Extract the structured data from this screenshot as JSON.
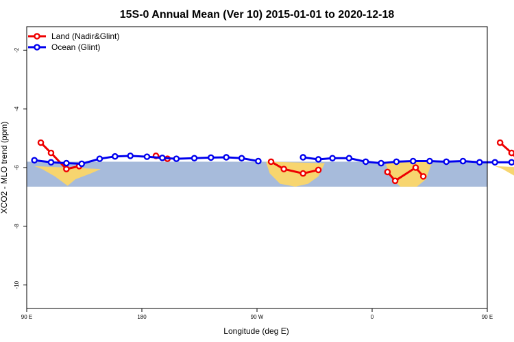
{
  "chart_data": {
    "type": "line",
    "title": "15S-0 Annual Mean (Ver 10)   2015-01-01 to 2020-12-18",
    "xlabel": "Longitude (deg E)",
    "ylabel": "XCO2 - MLO trend (ppm)",
    "xlim": [
      90,
      450
    ],
    "ylim": [
      -10.8,
      -1.2
    ],
    "x_ticks": [
      {
        "value": 90,
        "label": "90 E"
      },
      {
        "value": 180,
        "label": "180"
      },
      {
        "value": 270,
        "label": "90 W"
      },
      {
        "value": 360,
        "label": "0"
      },
      {
        "value": 450,
        "label": "90 E"
      },
      {
        "value": 540,
        "label": "180"
      }
    ],
    "y_ticks": [
      {
        "value": -2,
        "label": "-2"
      },
      {
        "value": -4,
        "label": "-4"
      },
      {
        "value": -6,
        "label": "-6"
      },
      {
        "value": -8,
        "label": "-8"
      },
      {
        "value": -10,
        "label": "-10"
      }
    ],
    "band": {
      "y_from": -6.65,
      "y_to": -5.8,
      "color": "#a7bbdb"
    },
    "land_regions": [
      {
        "x": [
          96,
          102,
          112,
          122,
          128,
          140,
          148
        ],
        "y": [
          -5.95,
          -6.05,
          -6.3,
          -6.62,
          -6.4,
          -6.2,
          -6.05
        ]
      },
      {
        "x": [
          277,
          280,
          288,
          300,
          310,
          318,
          323
        ],
        "y": [
          -5.8,
          -6.2,
          -6.55,
          -6.65,
          -6.55,
          -6.3,
          -5.85
        ]
      },
      {
        "x": [
          370,
          374,
          382,
          395,
          402,
          407
        ],
        "y": [
          -5.8,
          -6.3,
          -6.65,
          -6.65,
          -6.4,
          -5.8
        ]
      },
      {
        "x": [
          456,
          462,
          472,
          482,
          488,
          500,
          508
        ],
        "y": [
          -5.95,
          -6.05,
          -6.3,
          -6.62,
          -6.4,
          -6.2,
          -6.05
        ]
      }
    ],
    "series": [
      {
        "name": "Land (Nadir&Glint)",
        "color": "#ee0000",
        "segments": [
          {
            "x": [
              101,
              109,
              121,
              131
            ],
            "y": [
              -5.15,
              -5.5,
              -6.05,
              -5.95
            ]
          },
          {
            "x": [
              191,
              200
            ],
            "y": [
              -5.6,
              -5.7
            ]
          },
          {
            "x": [
              281,
              291,
              306,
              318
            ],
            "y": [
              -5.8,
              -6.05,
              -6.2,
              -6.08
            ]
          },
          {
            "x": [
              372,
              378,
              394,
              400
            ],
            "y": [
              -6.15,
              -6.45,
              -6.0,
              -6.3
            ]
          },
          {
            "x": [
              460,
              469,
              481,
              492
            ],
            "y": [
              -5.15,
              -5.5,
              -6.05,
              -5.95
            ]
          }
        ]
      },
      {
        "name": "Ocean (Glint)",
        "color": "#0000ee",
        "segments": [
          {
            "x": [
              96,
              109,
              121,
              133,
              147,
              159,
              171,
              184,
              196,
              207,
              221,
              234,
              246,
              258,
              271
            ]
          },
          {
            "x": [
              306,
              318,
              329,
              342,
              355,
              367,
              379,
              392,
              405,
              418,
              431,
              444,
              456,
              469,
              481,
              492,
              506,
              519,
              531,
              543,
              556,
              568,
              580,
              594,
              606,
              619,
              631
            ]
          }
        ],
        "values": [
          [
            -5.75,
            -5.82,
            -5.85,
            -5.87,
            -5.7,
            -5.62,
            -5.6,
            -5.63,
            -5.67,
            -5.7,
            -5.68,
            -5.66,
            -5.65,
            -5.68,
            -5.78
          ],
          [
            -5.65,
            -5.72,
            -5.68,
            -5.68,
            -5.8,
            -5.85,
            -5.8,
            -5.78,
            -5.78,
            -5.8,
            -5.78,
            -5.82,
            -5.82,
            -5.82,
            -5.82,
            -5.85,
            -5.7,
            -5.6,
            -5.62,
            -5.62,
            -5.65,
            -5.7,
            -5.72,
            -5.67,
            -5.65,
            -5.72,
            -5.8
          ]
        ]
      }
    ],
    "legend_position": "top-left",
    "grid": false
  }
}
